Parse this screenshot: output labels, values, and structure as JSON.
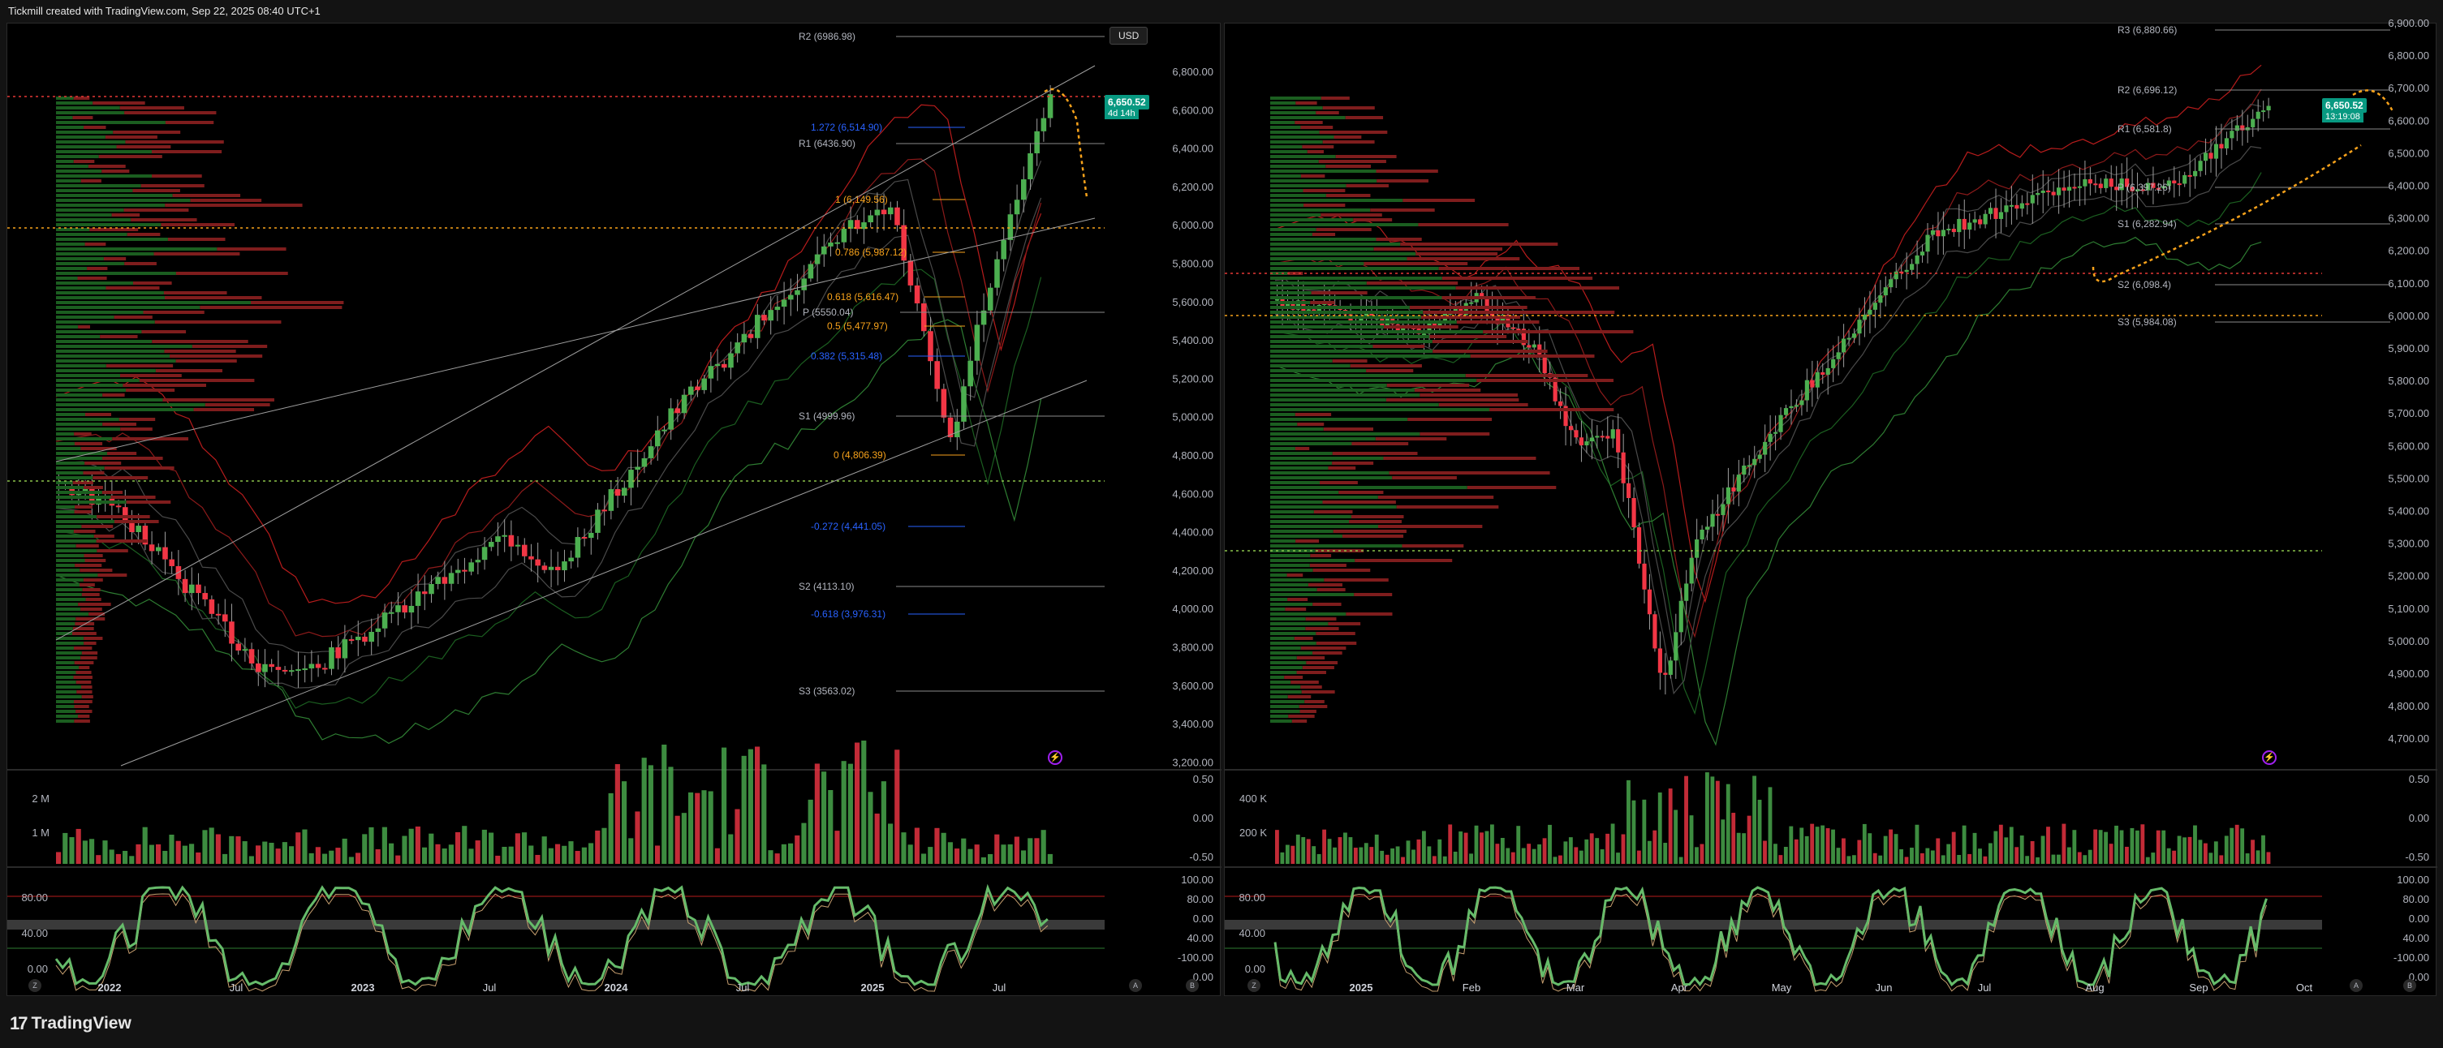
{
  "header": {
    "title": "Tickmill created with TradingView.com, Sep 22, 2025 08:40 UTC+1"
  },
  "footer": {
    "brand": "TradingView",
    "logo_mark": "17"
  },
  "left": {
    "currency_button": "USD",
    "price_badge": "6,650.52",
    "price_countdown": "4d 14h",
    "price_axis": [
      "6,800.00",
      "6,600.00",
      "6,400.00",
      "6,200.00",
      "6,000.00",
      "5,800.00",
      "5,600.00",
      "5,400.00",
      "5,200.00",
      "5,000.00",
      "4,800.00",
      "4,600.00",
      "4,400.00",
      "4,200.00",
      "4,000.00",
      "3,800.00",
      "3,600.00",
      "3,400.00",
      "3,200.00"
    ],
    "volume_axis": [
      "0.50",
      "0.00",
      "-0.50"
    ],
    "volume_labels": [
      "2 M",
      "1 M"
    ],
    "osc_axis_right": [
      "100.00",
      "80.00",
      "0.00",
      "40.00",
      "-100.00",
      "0.00"
    ],
    "osc_axis_left": [
      "80.00",
      "40.00",
      "0.00"
    ],
    "dates": [
      {
        "t": "2022",
        "bold": true
      },
      {
        "t": "Jul",
        "bold": false
      },
      {
        "t": "2023",
        "bold": true
      },
      {
        "t": "Jul",
        "bold": false
      },
      {
        "t": "2024",
        "bold": true
      },
      {
        "t": "Jul",
        "bold": false
      },
      {
        "t": "2025",
        "bold": true
      },
      {
        "t": "Jul",
        "bold": false
      }
    ],
    "pivots": [
      {
        "t": "R2 (6986.98)",
        "cls": "pivot"
      },
      {
        "t": "1.272 (6,514.90)",
        "cls": "fib-blue"
      },
      {
        "t": "R1 (6436.90)",
        "cls": "pivot"
      },
      {
        "t": "1 (6,149.56)",
        "cls": "fib-orange"
      },
      {
        "t": "0.786 (5,987.12)",
        "cls": "fib-orange"
      },
      {
        "t": "0.618 (5,616.47)",
        "cls": "fib-orange"
      },
      {
        "t": "P (5550.04)",
        "cls": "pivot"
      },
      {
        "t": "0.5 (5,477.97)",
        "cls": "fib-orange"
      },
      {
        "t": "0.382 (5,315.48)",
        "cls": "fib-blue"
      },
      {
        "t": "S1 (4999.96)",
        "cls": "pivot"
      },
      {
        "t": "0 (4,806.39)",
        "cls": "fib-orange"
      },
      {
        "t": "-0.272 (4,441.05)",
        "cls": "fib-blue"
      },
      {
        "t": "S2 (4113.10)",
        "cls": "pivot"
      },
      {
        "t": "-0.618 (3,976.31)",
        "cls": "fib-blue"
      },
      {
        "t": "S3 (3563.02)",
        "cls": "pivot"
      }
    ],
    "corner_left": "Z",
    "corner_right": [
      "A",
      "B"
    ]
  },
  "right": {
    "price_badge": "6,650.52",
    "price_countdown": "13:19:08",
    "price_axis": [
      "6,900.00",
      "6,800.00",
      "6,700.00",
      "6,600.00",
      "6,500.00",
      "6,400.00",
      "6,300.00",
      "6,200.00",
      "6,100.00",
      "6,000.00",
      "5,900.00",
      "5,800.00",
      "5,700.00",
      "5,600.00",
      "5,500.00",
      "5,400.00",
      "5,300.00",
      "5,200.00",
      "5,100.00",
      "5,000.00",
      "4,900.00",
      "4,800.00",
      "4,700.00"
    ],
    "volume_axis": [
      "0.50",
      "0.00",
      "-0.50"
    ],
    "volume_labels": [
      "400 K",
      "200 K"
    ],
    "osc_axis_right": [
      "100.00",
      "80.00",
      "0.00",
      "40.00",
      "-100.00",
      "0.00"
    ],
    "osc_axis_left": [
      "80.00",
      "40.00",
      "0.00"
    ],
    "dates": [
      {
        "t": "2025",
        "bold": true
      },
      {
        "t": "Feb",
        "bold": false
      },
      {
        "t": "Mar",
        "bold": false
      },
      {
        "t": "Apr",
        "bold": false
      },
      {
        "t": "May",
        "bold": false
      },
      {
        "t": "Jun",
        "bold": false
      },
      {
        "t": "Jul",
        "bold": false
      },
      {
        "t": "Aug",
        "bold": false
      },
      {
        "t": "Sep",
        "bold": false
      },
      {
        "t": "Oct",
        "bold": false
      }
    ],
    "pivots": [
      {
        "t": "R3 (6,880.66)",
        "cls": "pivot"
      },
      {
        "t": "R2 (6,696.12)",
        "cls": "pivot"
      },
      {
        "t": "R1 (6,581.8)",
        "cls": "pivot"
      },
      {
        "t": "P (6,397.26)",
        "cls": "pivot"
      },
      {
        "t": "S1 (6,282.94)",
        "cls": "pivot"
      },
      {
        "t": "S2 (6,098.4)",
        "cls": "pivot"
      },
      {
        "t": "S3 (5,984.08)",
        "cls": "pivot"
      }
    ],
    "corner_left": "Z",
    "corner_right": [
      "A",
      "B"
    ]
  },
  "colors": {
    "up": "#4caf50",
    "down": "#f23645",
    "bg": "#000000",
    "pivot_line": "#b2b5be",
    "fib_blue": "#2962ff",
    "fib_orange": "#f7a21b",
    "osc_green": "#66bb6a",
    "osc_red": "#f7525f"
  },
  "icons": [
    "lightning-icon"
  ]
}
